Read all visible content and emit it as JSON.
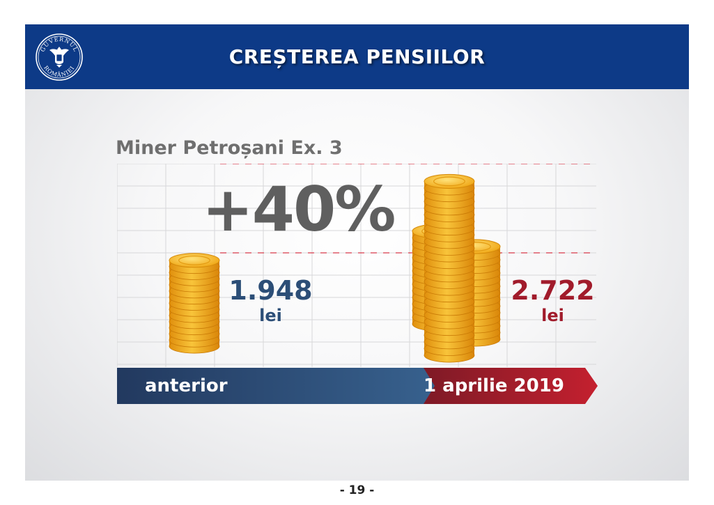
{
  "header": {
    "title": "CREȘTEREA PENSIILOR",
    "logo_text_top": "GUVERNUL",
    "logo_text_bottom": "ROMÂNIEI"
  },
  "case": {
    "title": "Miner Petroșani Ex. 3"
  },
  "increase": {
    "label": "+40%"
  },
  "before": {
    "value": "1.948",
    "unit": "lei",
    "label": "anterior"
  },
  "after": {
    "value": "2.722",
    "unit": "lei",
    "label": "1 aprilie 2019"
  },
  "footer": {
    "page_number": "- 19 -"
  },
  "colors": {
    "header_blue": "#0d3a87",
    "before_blue": "#2c4e77",
    "after_red": "#a11b2b",
    "coin_gold": "#f3b21d"
  }
}
